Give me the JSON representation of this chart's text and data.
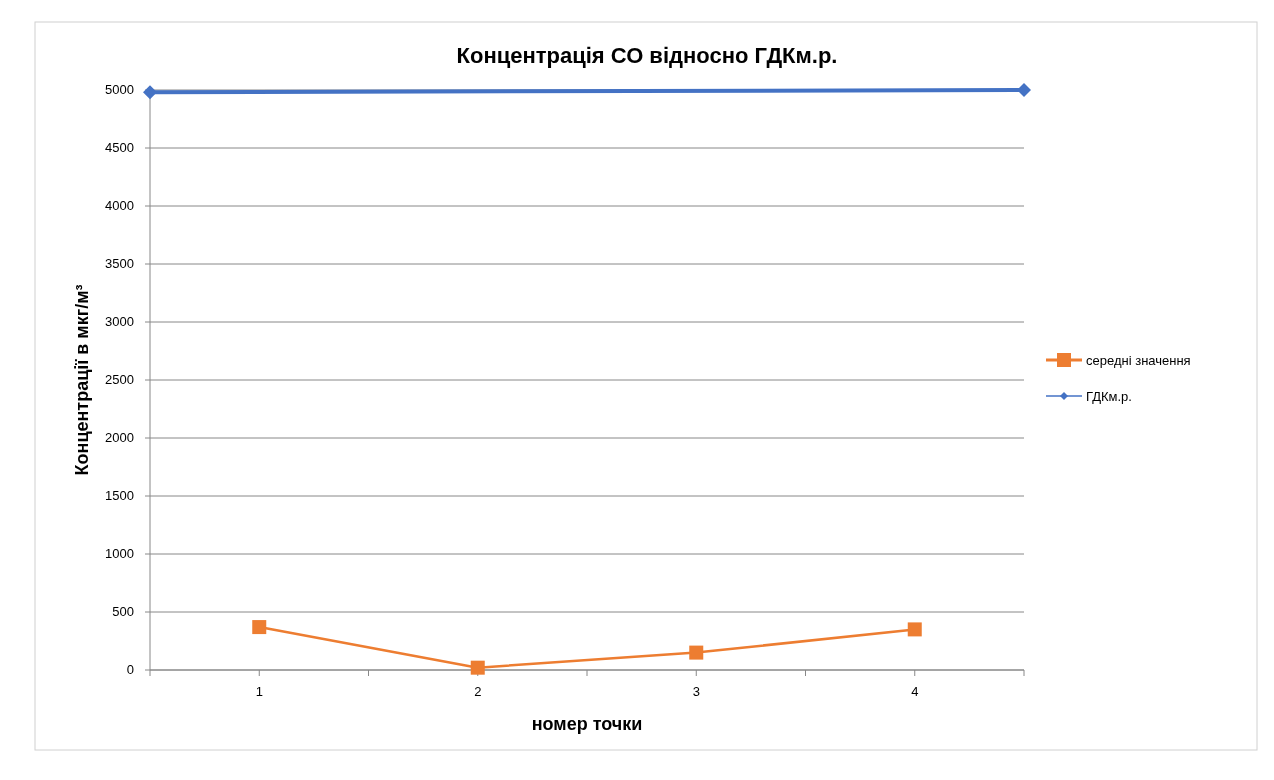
{
  "chart_data": {
    "type": "line",
    "title": "Концентрація СО відносно ГДКм.р.",
    "xlabel": "номер точки",
    "ylabel": "Концентрації в мкг/м³",
    "xlim": [
      0.5,
      4.5
    ],
    "xticks": [
      {
        "value": 0.5,
        "label": null
      },
      1,
      {
        "value": 1.5,
        "label": null
      },
      2,
      {
        "value": 2.5,
        "label": null
      },
      3,
      {
        "value": 3.5,
        "label": null
      },
      4,
      {
        "value": 4.5,
        "label": null
      }
    ],
    "ylim": [
      0,
      5000
    ],
    "yticks": [
      0,
      500,
      1000,
      1500,
      2000,
      2500,
      3000,
      3500,
      4000,
      4500,
      5000
    ],
    "grid": "y",
    "legend": "right",
    "series": [
      {
        "name": "середні значення",
        "color": "#ed7d31",
        "x": [
          1,
          2,
          3,
          4
        ],
        "values": [
          370,
          20,
          150,
          350
        ],
        "marker": "square"
      },
      {
        "name": "ГДКм.р.",
        "color": "#4472c4",
        "x": [
          0.5,
          4.5
        ],
        "values": [
          4980,
          5000
        ],
        "marker": "diamond"
      }
    ]
  }
}
